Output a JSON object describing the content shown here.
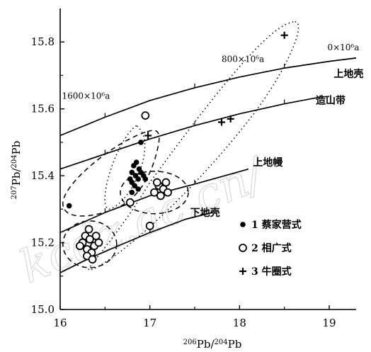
{
  "chart_data": {
    "type": "scatter",
    "xlabel_html": {
      "pre": "206",
      "mid": "Pb/",
      "pre2": "204",
      "end": "Pb"
    },
    "ylabel_html": {
      "pre": "207",
      "mid": "Pb/",
      "pre2": "204",
      "end": "Pb"
    },
    "xlim": [
      16,
      19.3
    ],
    "ylim": [
      15.0,
      15.9
    ],
    "x_ticks": [
      "16",
      "17",
      "18",
      "19"
    ],
    "y_ticks": [
      "15.0",
      "15.2",
      "15.4",
      "15.6",
      "15.8"
    ],
    "evolution_curves": [
      {
        "name": "上地壳",
        "points": [
          [
            16.0,
            15.52
          ],
          [
            16.5,
            15.575
          ],
          [
            17.0,
            15.625
          ],
          [
            17.5,
            15.663
          ],
          [
            18.0,
            15.695
          ],
          [
            18.5,
            15.722
          ],
          [
            19.0,
            15.742
          ],
          [
            19.3,
            15.752
          ]
        ]
      },
      {
        "name": "造山带",
        "points": [
          [
            16.0,
            15.42
          ],
          [
            16.5,
            15.465
          ],
          [
            17.0,
            15.51
          ],
          [
            17.5,
            15.55
          ],
          [
            18.0,
            15.585
          ],
          [
            18.5,
            15.615
          ],
          [
            18.9,
            15.635
          ],
          [
            19.0,
            15.637
          ]
        ]
      },
      {
        "name": "上地幔",
        "points": [
          [
            16.0,
            15.23
          ],
          [
            16.5,
            15.29
          ],
          [
            17.0,
            15.34
          ],
          [
            17.5,
            15.375
          ],
          [
            17.9,
            15.405
          ],
          [
            18.1,
            15.42
          ]
        ]
      },
      {
        "name": "下地壳",
        "points": [
          [
            16.0,
            15.11
          ],
          [
            16.3,
            15.15
          ],
          [
            16.6,
            15.185
          ],
          [
            17.0,
            15.23
          ],
          [
            17.4,
            15.27
          ],
          [
            17.7,
            15.29
          ]
        ]
      }
    ],
    "age_labels": [
      "0×10⁶a",
      "800×10⁶a",
      "1600×10⁶a"
    ],
    "series": [
      {
        "name": "1 蔡家营式",
        "marker": "filled-circle",
        "points": [
          [
            16.1,
            15.31
          ],
          [
            16.78,
            15.39
          ],
          [
            16.8,
            15.41
          ],
          [
            16.82,
            15.43
          ],
          [
            16.85,
            15.44
          ],
          [
            16.8,
            15.38
          ],
          [
            16.84,
            15.4
          ],
          [
            16.87,
            15.39
          ],
          [
            16.9,
            15.41
          ],
          [
            16.93,
            15.4
          ],
          [
            16.95,
            15.39
          ],
          [
            16.88,
            15.42
          ],
          [
            16.83,
            15.37
          ],
          [
            16.9,
            15.5
          ],
          [
            16.87,
            15.36
          ],
          [
            16.8,
            15.35
          ]
        ]
      },
      {
        "name": "2 相广式",
        "marker": "open-circle",
        "points": [
          [
            16.25,
            15.2
          ],
          [
            16.3,
            15.18
          ],
          [
            16.35,
            15.17
          ],
          [
            16.28,
            15.22
          ],
          [
            16.33,
            15.21
          ],
          [
            16.38,
            15.19
          ],
          [
            16.32,
            15.24
          ],
          [
            16.4,
            15.22
          ],
          [
            16.3,
            15.16
          ],
          [
            16.36,
            15.15
          ],
          [
            16.22,
            15.19
          ],
          [
            16.43,
            15.2
          ],
          [
            16.78,
            15.32
          ],
          [
            17.05,
            15.35
          ],
          [
            17.1,
            15.37
          ],
          [
            17.15,
            15.36
          ],
          [
            17.08,
            15.38
          ],
          [
            17.12,
            15.34
          ],
          [
            17.18,
            15.38
          ],
          [
            17.2,
            15.35
          ],
          [
            17.0,
            15.25
          ],
          [
            16.95,
            15.58
          ]
        ]
      },
      {
        "name": "3 牛圈式",
        "marker": "plus",
        "points": [
          [
            18.5,
            15.82
          ],
          [
            17.9,
            15.57
          ],
          [
            17.8,
            15.56
          ],
          [
            16.98,
            15.52
          ]
        ]
      }
    ]
  },
  "watermark": "kcdz.ac.cn/",
  "colors": {
    "ink": "#000000",
    "watermark": "#d9d9d9"
  }
}
